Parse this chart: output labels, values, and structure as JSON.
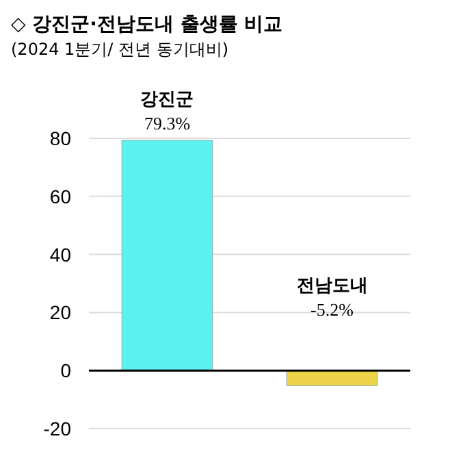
{
  "chart_data": {
    "type": "bar",
    "title": "◇ 강진군·전남도내 출생률 비교",
    "subtitle": "(2024 1분기/ 전년 동기대비)",
    "categories": [
      "강진군",
      "전남도내"
    ],
    "values": [
      79.3,
      -5.2
    ],
    "colors": [
      "#5cf2f0",
      "#ecd348"
    ],
    "value_labels": [
      "79.3%",
      "-5.2%"
    ],
    "ylim": [
      -20,
      80
    ],
    "yticks": [
      -20,
      0,
      20,
      40,
      60,
      80
    ],
    "grid": "y"
  }
}
